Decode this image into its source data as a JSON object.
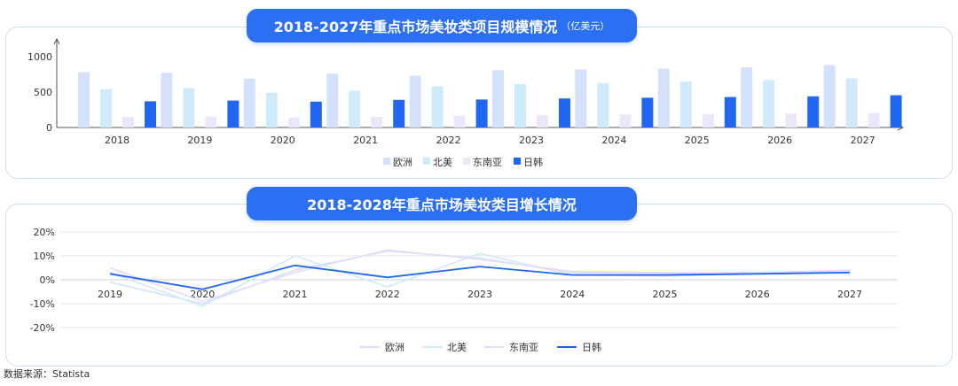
{
  "source": "数据来源：Statista",
  "chart_data": [
    {
      "type": "bar",
      "title": "2018-2027年重点市场美妆类项目规模情况",
      "unit": "（亿美元）",
      "categories": [
        "2018",
        "2019",
        "2020",
        "2021",
        "2022",
        "2023",
        "2024",
        "2025",
        "2026",
        "2027"
      ],
      "ylim": [
        0,
        1000
      ],
      "yticks": [
        "0",
        "500",
        "1000"
      ],
      "legend_position": "bottom",
      "series": [
        {
          "name": "欧洲",
          "color": "#d3e2fa",
          "values": [
            780,
            770,
            690,
            760,
            730,
            810,
            820,
            830,
            850,
            880
          ]
        },
        {
          "name": "北美",
          "color": "#cfeaf9",
          "values": [
            540,
            555,
            490,
            520,
            580,
            615,
            630,
            645,
            670,
            695
          ]
        },
        {
          "name": "东南亚",
          "color": "#ece6fa",
          "values": [
            150,
            155,
            140,
            150,
            165,
            175,
            185,
            190,
            195,
            205
          ]
        },
        {
          "name": "日韩",
          "color": "#2166f0",
          "values": [
            370,
            380,
            365,
            390,
            395,
            410,
            420,
            430,
            440,
            455
          ]
        }
      ]
    },
    {
      "type": "line",
      "title": "2018-2028年重点市场美妆类目增长情况",
      "categories": [
        "2019",
        "2020",
        "2021",
        "2022",
        "2023",
        "2024",
        "2025",
        "2026",
        "2027"
      ],
      "ylim": [
        -20,
        20
      ],
      "yticks": [
        "20%",
        "10%",
        "0%",
        "-10%",
        "-20%"
      ],
      "grid": true,
      "legend_position": "bottom",
      "series": [
        {
          "name": "欧洲",
          "color": "#d3e2fa",
          "values": [
            -1,
            -10,
            4,
            12,
            9,
            3,
            2.5,
            3,
            3.5
          ]
        },
        {
          "name": "北美",
          "color": "#cfeaf9",
          "values": [
            3,
            -11,
            10,
            -3,
            11,
            2,
            1.5,
            2.5,
            3
          ]
        },
        {
          "name": "东南亚",
          "color": "#e4ddf9",
          "values": [
            5,
            -9,
            3,
            12.5,
            8.5,
            3.5,
            3,
            3,
            4
          ]
        },
        {
          "name": "日韩",
          "color": "#2166f0",
          "values": [
            2.5,
            -4,
            6,
            1,
            5.5,
            2,
            2,
            2.5,
            3
          ]
        }
      ]
    }
  ]
}
